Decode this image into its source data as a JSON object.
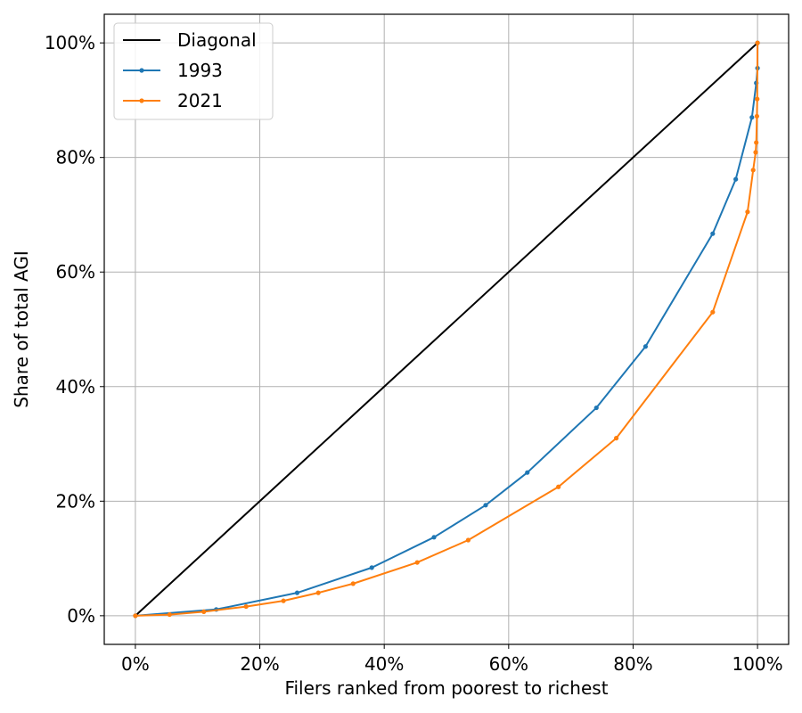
{
  "chart_data": {
    "type": "line",
    "xlabel": "Filers ranked from poorest to richest",
    "ylabel": "Share of total AGI",
    "xlim": [
      -5,
      105
    ],
    "ylim": [
      -5,
      105
    ],
    "x_ticks": [
      0,
      20,
      40,
      60,
      80,
      100
    ],
    "y_ticks": [
      0,
      20,
      40,
      60,
      80,
      100
    ],
    "x_tick_labels": [
      "0%",
      "20%",
      "40%",
      "60%",
      "80%",
      "100%"
    ],
    "y_tick_labels": [
      "0%",
      "20%",
      "40%",
      "60%",
      "80%",
      "100%"
    ],
    "grid": true,
    "legend_position": "top-left",
    "series": [
      {
        "name": "Diagonal",
        "color": "#000000",
        "markers": false,
        "points": [
          [
            0,
            0
          ],
          [
            100,
            100
          ]
        ]
      },
      {
        "name": "1993",
        "color": "#1f77b4",
        "markers": true,
        "points": [
          [
            0,
            0
          ],
          [
            13,
            1.1
          ],
          [
            26,
            4.0
          ],
          [
            38,
            8.4
          ],
          [
            48,
            13.7
          ],
          [
            56.3,
            19.3
          ],
          [
            63,
            25.0
          ],
          [
            74.1,
            36.3
          ],
          [
            82,
            47.0
          ],
          [
            92.8,
            66.7
          ],
          [
            96.5,
            76.2
          ],
          [
            99.1,
            87.0
          ],
          [
            99.8,
            93.0
          ],
          [
            100,
            95.6
          ],
          [
            100,
            100
          ]
        ]
      },
      {
        "name": "2021",
        "color": "#ff7f0e",
        "markers": true,
        "points": [
          [
            0,
            0
          ],
          [
            5.5,
            0.2
          ],
          [
            11,
            0.7
          ],
          [
            17.8,
            1.6
          ],
          [
            23.8,
            2.6
          ],
          [
            29.4,
            4.0
          ],
          [
            35,
            5.6
          ],
          [
            45.3,
            9.3
          ],
          [
            53.5,
            13.2
          ],
          [
            68,
            22.5
          ],
          [
            77.3,
            31.0
          ],
          [
            92.8,
            53.0
          ],
          [
            98.4,
            70.5
          ],
          [
            99.3,
            77.8
          ],
          [
            99.7,
            80.9
          ],
          [
            99.8,
            82.6
          ],
          [
            99.9,
            87.2
          ],
          [
            99.95,
            90.2
          ],
          [
            100,
            100
          ]
        ]
      }
    ]
  }
}
